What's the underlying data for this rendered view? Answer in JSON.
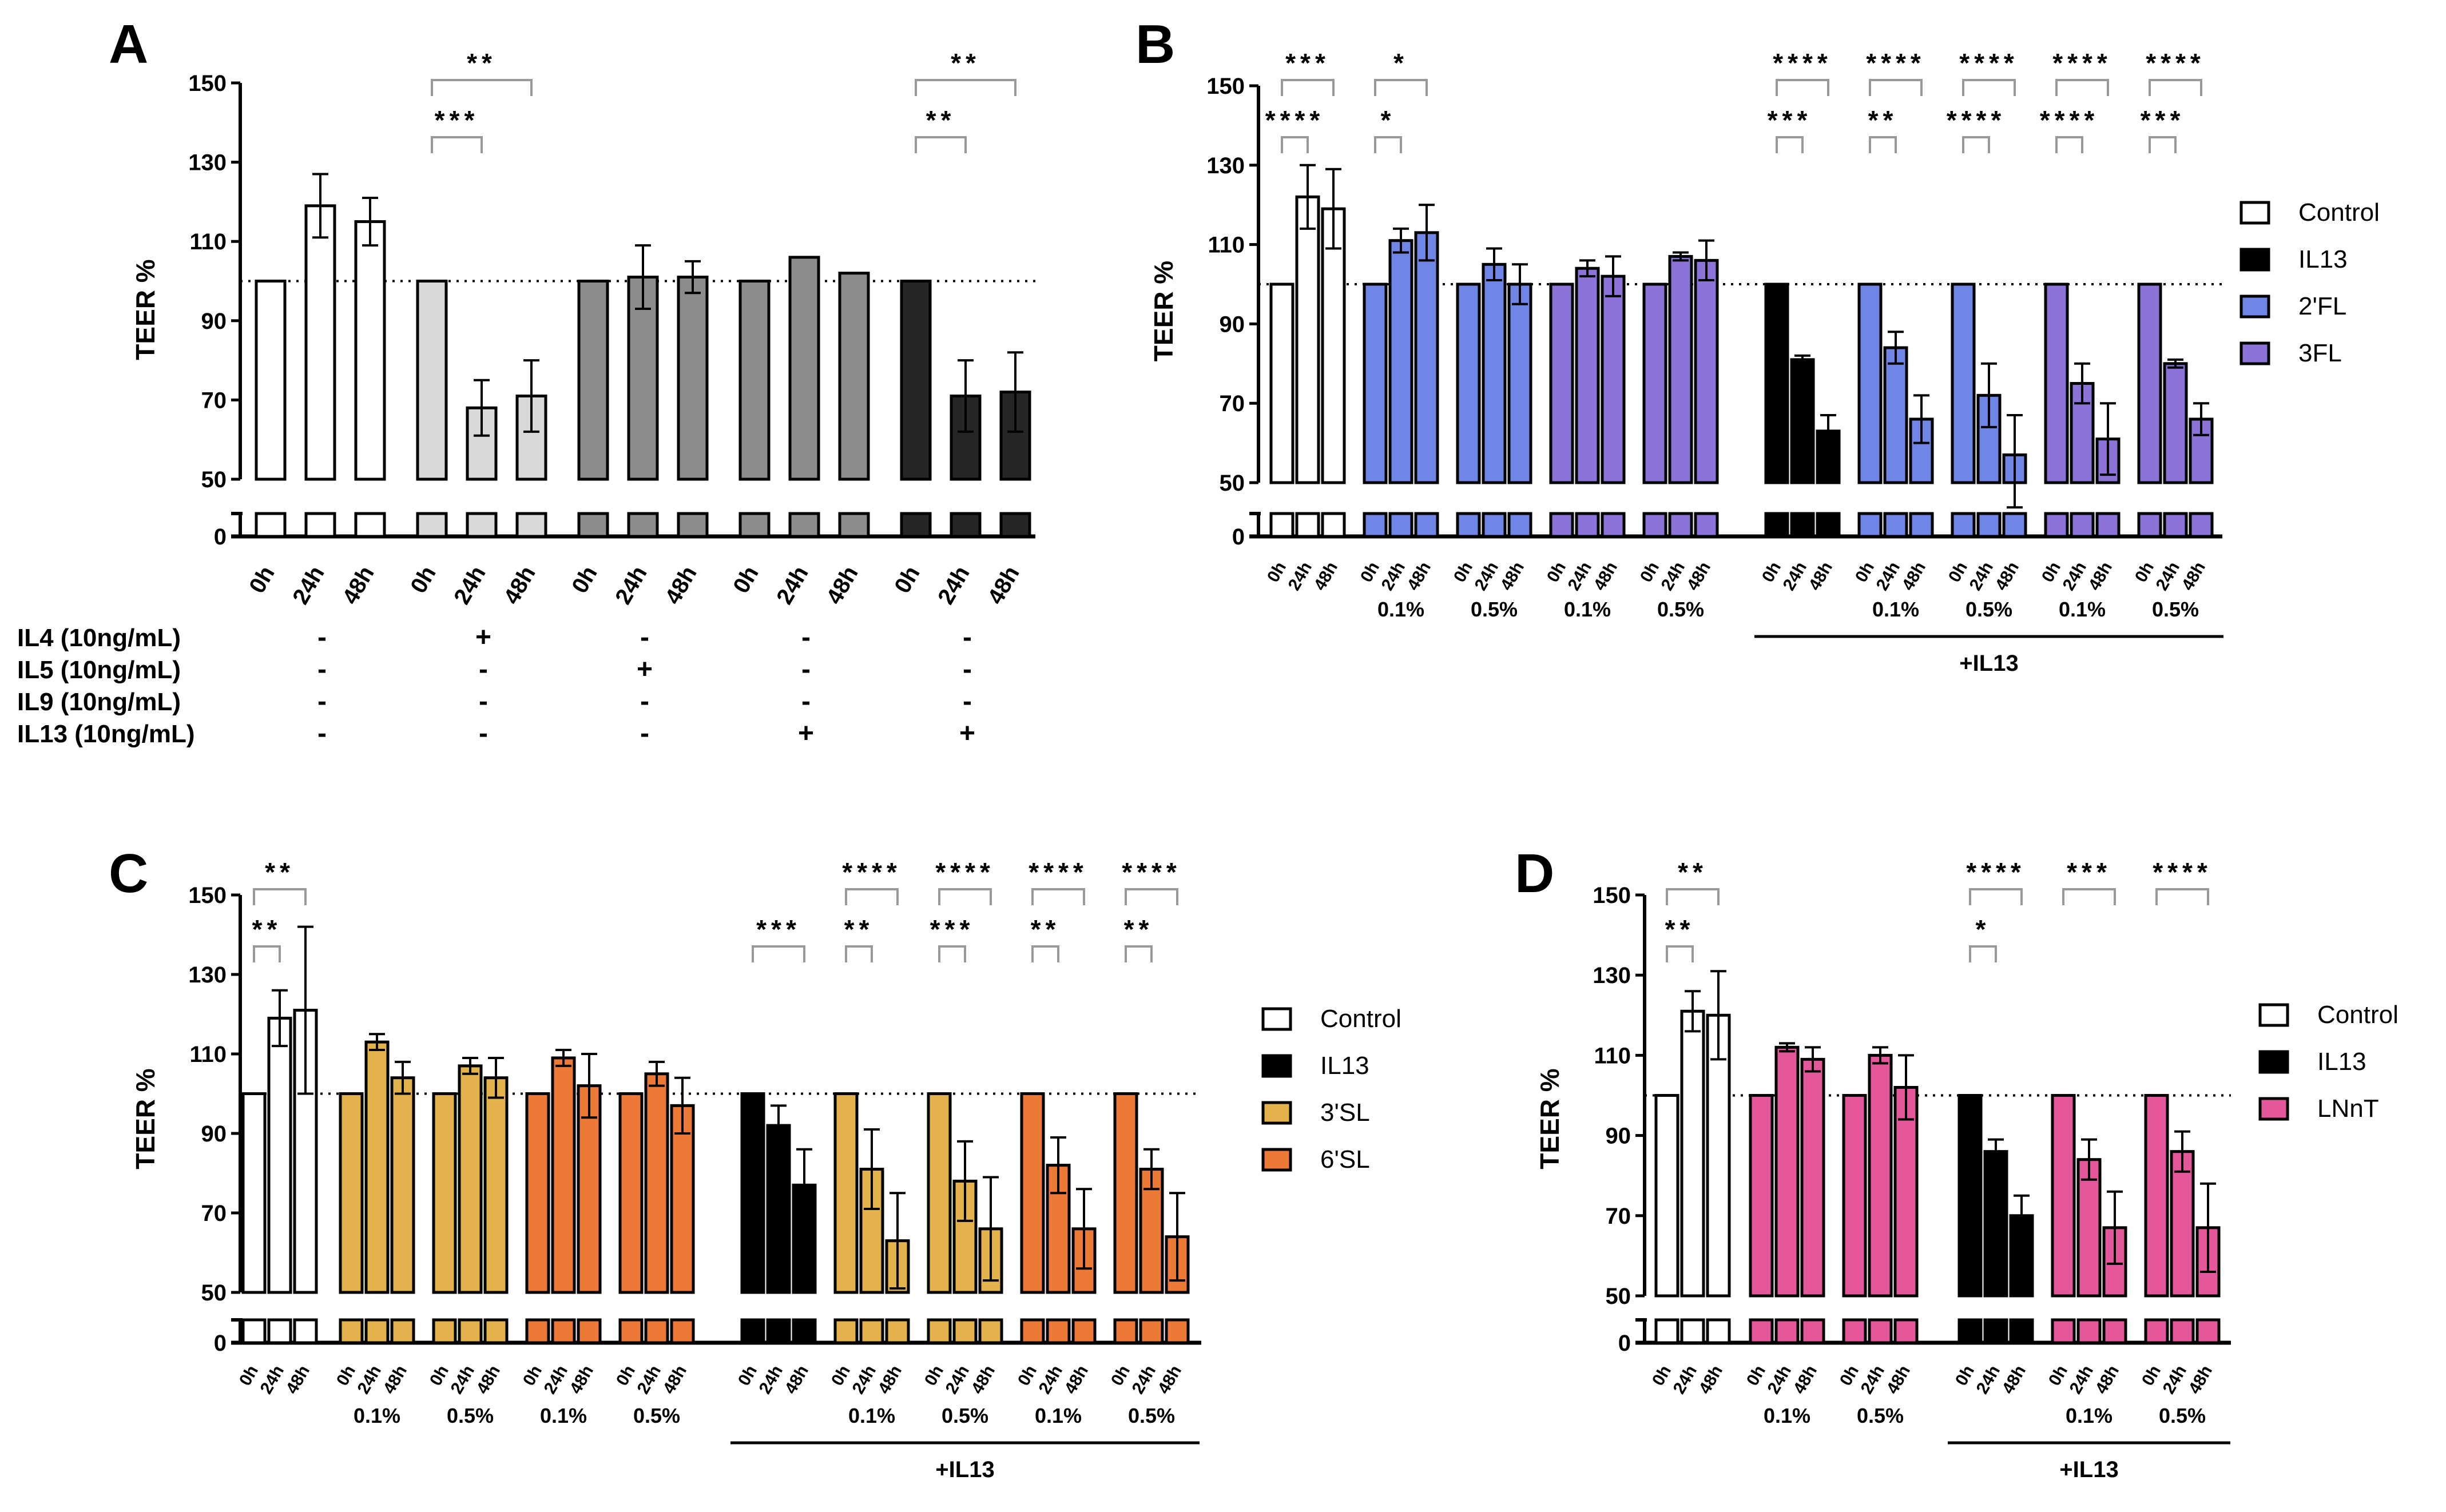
{
  "figure": {
    "ref_line_label": "",
    "x_labels": [
      "0h",
      "24h",
      "48h"
    ]
  },
  "chart_data": [
    {
      "type": "bar",
      "panel_letter": "A",
      "ylabel": "TEER %",
      "ylim": [
        0,
        150
      ],
      "y_break": [
        0,
        50
      ],
      "ref_line": 100,
      "yticks": [
        "0",
        "50",
        "70",
        "90",
        "110",
        "130",
        "150"
      ],
      "groups": [
        {
          "color": "#ffffff",
          "values": [
            100,
            119,
            115
          ],
          "errors": [
            0,
            8,
            6
          ],
          "concentration": ""
        },
        {
          "color": "#d9d9d9",
          "values": [
            100,
            68,
            71
          ],
          "errors": [
            0,
            7,
            9
          ],
          "concentration": ""
        },
        {
          "color": "#8c8c8c",
          "values": [
            100,
            101,
            101
          ],
          "errors": [
            0,
            8,
            4
          ],
          "concentration": ""
        },
        {
          "color": "#8c8c8c",
          "values": [
            100,
            106,
            102
          ],
          "errors": [
            0,
            0,
            0
          ],
          "concentration": ""
        },
        {
          "color": "#262626",
          "values": [
            100,
            71,
            72
          ],
          "errors": [
            0,
            9,
            10
          ],
          "concentration": ""
        }
      ],
      "treatments": [
        {
          "label": "IL4 (10ng/mL)",
          "signs": [
            "-",
            "+",
            "-",
            "-",
            "-"
          ]
        },
        {
          "label": "IL5 (10ng/mL)",
          "signs": [
            "-",
            "-",
            "+",
            "-",
            "-"
          ]
        },
        {
          "label": "IL9 (10ng/mL)",
          "signs": [
            "-",
            "-",
            "-",
            "-",
            "-"
          ]
        },
        {
          "label": "IL13 (10ng/mL)",
          "signs": [
            "-",
            "-",
            "-",
            "+",
            "+"
          ]
        }
      ],
      "significance": [
        {
          "group": 1,
          "from": 0,
          "to": 2,
          "stars": "**",
          "level": 0
        },
        {
          "group": 1,
          "from": 0,
          "to": 1,
          "stars": "***",
          "level": 1
        },
        {
          "group": 4,
          "from": 0,
          "to": 2,
          "stars": "**",
          "level": 0
        },
        {
          "group": 4,
          "from": 0,
          "to": 1,
          "stars": "**",
          "level": 1
        }
      ],
      "bracket_label": "",
      "legend": []
    },
    {
      "type": "bar",
      "panel_letter": "B",
      "ylabel": "TEER %",
      "ylim": [
        0,
        150
      ],
      "y_break": [
        0,
        50
      ],
      "ref_line": 100,
      "yticks": [
        "0",
        "50",
        "70",
        "90",
        "110",
        "130",
        "150"
      ],
      "groups": [
        {
          "color": "#ffffff",
          "values": [
            100,
            122,
            119
          ],
          "errors": [
            0,
            8,
            10
          ],
          "concentration": ""
        },
        {
          "color": "#6f86e6",
          "values": [
            100,
            111,
            113
          ],
          "errors": [
            0,
            3,
            7
          ],
          "concentration": "0.1%"
        },
        {
          "color": "#6f86e6",
          "values": [
            100,
            105,
            100
          ],
          "errors": [
            0,
            4,
            5
          ],
          "concentration": "0.5%"
        },
        {
          "color": "#8b73d8",
          "values": [
            100,
            104,
            102
          ],
          "errors": [
            0,
            2,
            5
          ],
          "concentration": "0.1%"
        },
        {
          "color": "#8b73d8",
          "values": [
            100,
            107,
            106
          ],
          "errors": [
            0,
            1,
            5
          ],
          "concentration": "0.5%"
        },
        {
          "color": "#000000",
          "values": [
            100,
            81,
            63
          ],
          "errors": [
            0,
            1,
            4
          ],
          "concentration": ""
        },
        {
          "color": "#6f86e6",
          "values": [
            100,
            84,
            66
          ],
          "errors": [
            0,
            4,
            6
          ],
          "concentration": "0.1%"
        },
        {
          "color": "#6f86e6",
          "values": [
            100,
            72,
            57
          ],
          "errors": [
            0,
            8,
            10
          ],
          "concentration": "0.5%"
        },
        {
          "color": "#8b73d8",
          "values": [
            100,
            75,
            61
          ],
          "errors": [
            0,
            5,
            9
          ],
          "concentration": "0.1%"
        },
        {
          "color": "#8b73d8",
          "values": [
            100,
            80,
            66
          ],
          "errors": [
            0,
            1,
            4
          ],
          "concentration": "0.5%"
        }
      ],
      "significance": [
        {
          "group": 0,
          "from": 0,
          "to": 2,
          "stars": "***",
          "level": 0
        },
        {
          "group": 0,
          "from": 0,
          "to": 1,
          "stars": "****",
          "level": 1
        },
        {
          "group": 1,
          "from": 0,
          "to": 2,
          "stars": "*",
          "level": 0
        },
        {
          "group": 1,
          "from": 0,
          "to": 1,
          "stars": "*",
          "level": 1
        },
        {
          "group": 5,
          "from": 0,
          "to": 2,
          "stars": "****",
          "level": 0
        },
        {
          "group": 5,
          "from": 0,
          "to": 1,
          "stars": "***",
          "level": 1
        },
        {
          "group": 6,
          "from": 0,
          "to": 2,
          "stars": "****",
          "level": 0
        },
        {
          "group": 6,
          "from": 0,
          "to": 1,
          "stars": "**",
          "level": 1
        },
        {
          "group": 7,
          "from": 0,
          "to": 2,
          "stars": "****",
          "level": 0
        },
        {
          "group": 7,
          "from": 0,
          "to": 1,
          "stars": "****",
          "level": 1
        },
        {
          "group": 8,
          "from": 0,
          "to": 2,
          "stars": "****",
          "level": 0
        },
        {
          "group": 8,
          "from": 0,
          "to": 1,
          "stars": "****",
          "level": 1
        },
        {
          "group": 9,
          "from": 0,
          "to": 2,
          "stars": "****",
          "level": 0
        },
        {
          "group": 9,
          "from": 0,
          "to": 1,
          "stars": "***",
          "level": 1
        }
      ],
      "bracket_label": "+IL13",
      "bracket_groups": [
        5,
        9
      ],
      "legend": [
        {
          "label": "Control",
          "color": "#ffffff"
        },
        {
          "label": "IL13",
          "color": "#000000"
        },
        {
          "label": "2'FL",
          "color": "#6f86e6"
        },
        {
          "label": "3FL",
          "color": "#8b73d8"
        }
      ]
    },
    {
      "type": "bar",
      "panel_letter": "C",
      "ylabel": "TEER %",
      "ylim": [
        0,
        150
      ],
      "y_break": [
        0,
        50
      ],
      "ref_line": 100,
      "yticks": [
        "0",
        "50",
        "70",
        "90",
        "110",
        "130",
        "150"
      ],
      "groups": [
        {
          "color": "#ffffff",
          "values": [
            100,
            119,
            121
          ],
          "errors": [
            0,
            7,
            21
          ],
          "concentration": ""
        },
        {
          "color": "#e3b24c",
          "values": [
            100,
            113,
            104
          ],
          "errors": [
            0,
            2,
            4
          ],
          "concentration": "0.1%"
        },
        {
          "color": "#e3b24c",
          "values": [
            100,
            107,
            104
          ],
          "errors": [
            0,
            2,
            5
          ],
          "concentration": "0.5%"
        },
        {
          "color": "#ec7a36",
          "values": [
            100,
            109,
            102
          ],
          "errors": [
            0,
            2,
            8
          ],
          "concentration": "0.1%"
        },
        {
          "color": "#ec7a36",
          "values": [
            100,
            105,
            97
          ],
          "errors": [
            0,
            3,
            7
          ],
          "concentration": "0.5%"
        },
        {
          "color": "#000000",
          "values": [
            100,
            92,
            77
          ],
          "errors": [
            0,
            5,
            9
          ],
          "concentration": ""
        },
        {
          "color": "#e3b24c",
          "values": [
            100,
            81,
            63
          ],
          "errors": [
            0,
            10,
            12
          ],
          "concentration": "0.1%"
        },
        {
          "color": "#e3b24c",
          "values": [
            100,
            78,
            66
          ],
          "errors": [
            0,
            10,
            13
          ],
          "concentration": "0.5%"
        },
        {
          "color": "#ec7a36",
          "values": [
            100,
            82,
            66
          ],
          "errors": [
            0,
            7,
            10
          ],
          "concentration": "0.1%"
        },
        {
          "color": "#ec7a36",
          "values": [
            100,
            81,
            64
          ],
          "errors": [
            0,
            5,
            11
          ],
          "concentration": "0.5%"
        }
      ],
      "significance": [
        {
          "group": 0,
          "from": 0,
          "to": 2,
          "stars": "**",
          "level": 0
        },
        {
          "group": 0,
          "from": 0,
          "to": 1,
          "stars": "**",
          "level": 1
        },
        {
          "group": 5,
          "from": 0,
          "to": 2,
          "stars": "***",
          "level": 1
        },
        {
          "group": 6,
          "from": 0,
          "to": 2,
          "stars": "****",
          "level": 0
        },
        {
          "group": 6,
          "from": 0,
          "to": 1,
          "stars": "**",
          "level": 1
        },
        {
          "group": 7,
          "from": 0,
          "to": 2,
          "stars": "****",
          "level": 0
        },
        {
          "group": 7,
          "from": 0,
          "to": 1,
          "stars": "***",
          "level": 1
        },
        {
          "group": 8,
          "from": 0,
          "to": 2,
          "stars": "****",
          "level": 0
        },
        {
          "group": 8,
          "from": 0,
          "to": 1,
          "stars": "**",
          "level": 1
        },
        {
          "group": 9,
          "from": 0,
          "to": 2,
          "stars": "****",
          "level": 0
        },
        {
          "group": 9,
          "from": 0,
          "to": 1,
          "stars": "**",
          "level": 1
        }
      ],
      "bracket_label": "+IL13",
      "bracket_groups": [
        5,
        9
      ],
      "legend": [
        {
          "label": "Control",
          "color": "#ffffff"
        },
        {
          "label": "IL13",
          "color": "#000000"
        },
        {
          "label": "3'SL",
          "color": "#e3b24c"
        },
        {
          "label": "6'SL",
          "color": "#ec7a36"
        }
      ]
    },
    {
      "type": "bar",
      "panel_letter": "D",
      "ylabel": "TEER %",
      "ylim": [
        0,
        150
      ],
      "y_break": [
        0,
        50
      ],
      "ref_line": 100,
      "yticks": [
        "0",
        "50",
        "70",
        "90",
        "110",
        "130",
        "150"
      ],
      "groups": [
        {
          "color": "#ffffff",
          "values": [
            100,
            121,
            120
          ],
          "errors": [
            0,
            5,
            11
          ],
          "concentration": ""
        },
        {
          "color": "#e4579a",
          "values": [
            100,
            112,
            109
          ],
          "errors": [
            0,
            1,
            3
          ],
          "concentration": "0.1%"
        },
        {
          "color": "#e4579a",
          "values": [
            100,
            110,
            102
          ],
          "errors": [
            0,
            2,
            8
          ],
          "concentration": "0.5%"
        },
        {
          "color": "#000000",
          "values": [
            100,
            86,
            70
          ],
          "errors": [
            0,
            3,
            5
          ],
          "concentration": ""
        },
        {
          "color": "#e4579a",
          "values": [
            100,
            84,
            67
          ],
          "errors": [
            0,
            5,
            9
          ],
          "concentration": "0.1%"
        },
        {
          "color": "#e4579a",
          "values": [
            100,
            86,
            67
          ],
          "errors": [
            0,
            5,
            11
          ],
          "concentration": "0.5%"
        }
      ],
      "significance": [
        {
          "group": 0,
          "from": 0,
          "to": 2,
          "stars": "**",
          "level": 0
        },
        {
          "group": 0,
          "from": 0,
          "to": 1,
          "stars": "**",
          "level": 1
        },
        {
          "group": 3,
          "from": 0,
          "to": 2,
          "stars": "****",
          "level": 0
        },
        {
          "group": 3,
          "from": 0,
          "to": 1,
          "stars": "*",
          "level": 1
        },
        {
          "group": 4,
          "from": 0,
          "to": 2,
          "stars": "***",
          "level": 0
        },
        {
          "group": 5,
          "from": 0,
          "to": 2,
          "stars": "****",
          "level": 0
        }
      ],
      "bracket_label": "+IL13",
      "bracket_groups": [
        3,
        5
      ],
      "legend": [
        {
          "label": "Control",
          "color": "#ffffff"
        },
        {
          "label": "IL13",
          "color": "#000000"
        },
        {
          "label": "LNnT",
          "color": "#e4579a"
        }
      ]
    }
  ]
}
